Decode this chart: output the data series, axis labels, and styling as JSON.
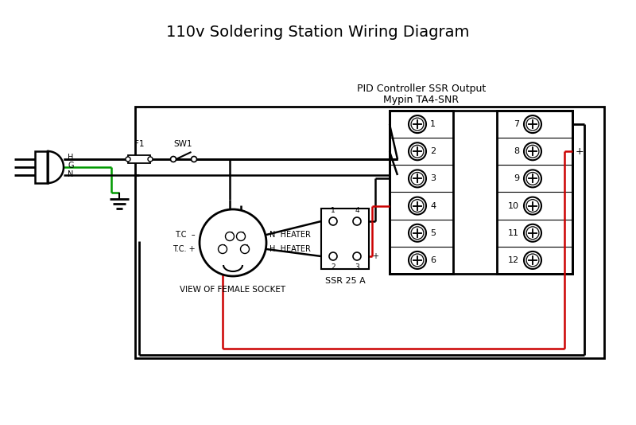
{
  "title": "110v Soldering Station Wiring Diagram",
  "bg_color": "#ffffff",
  "line_color": "#000000",
  "red_color": "#cc0000",
  "green_color": "#009900",
  "pid_label1": "PID Controller SSR Output",
  "pid_label2": "Mypin TA4-SNR",
  "ssr_label": "SSR 25 A",
  "fuse_label": "F1",
  "switch_label": "SW1",
  "h_label": "H",
  "g_label": "G",
  "n_label": "N",
  "tc_minus": "T.C  –",
  "tc_plus": "T.C. +",
  "n_heater": "N  HEATER",
  "h_heater": "H  HEATER",
  "socket_label": "VIEW OF FEMALE SOCKET",
  "terminal_left": [
    1,
    2,
    3,
    4,
    5,
    6
  ],
  "terminal_right": [
    7,
    8,
    9,
    10,
    11,
    12
  ],
  "minus_label": "–",
  "plus_label": "+",
  "figsize": [
    8.0,
    5.34
  ],
  "dpi": 100
}
